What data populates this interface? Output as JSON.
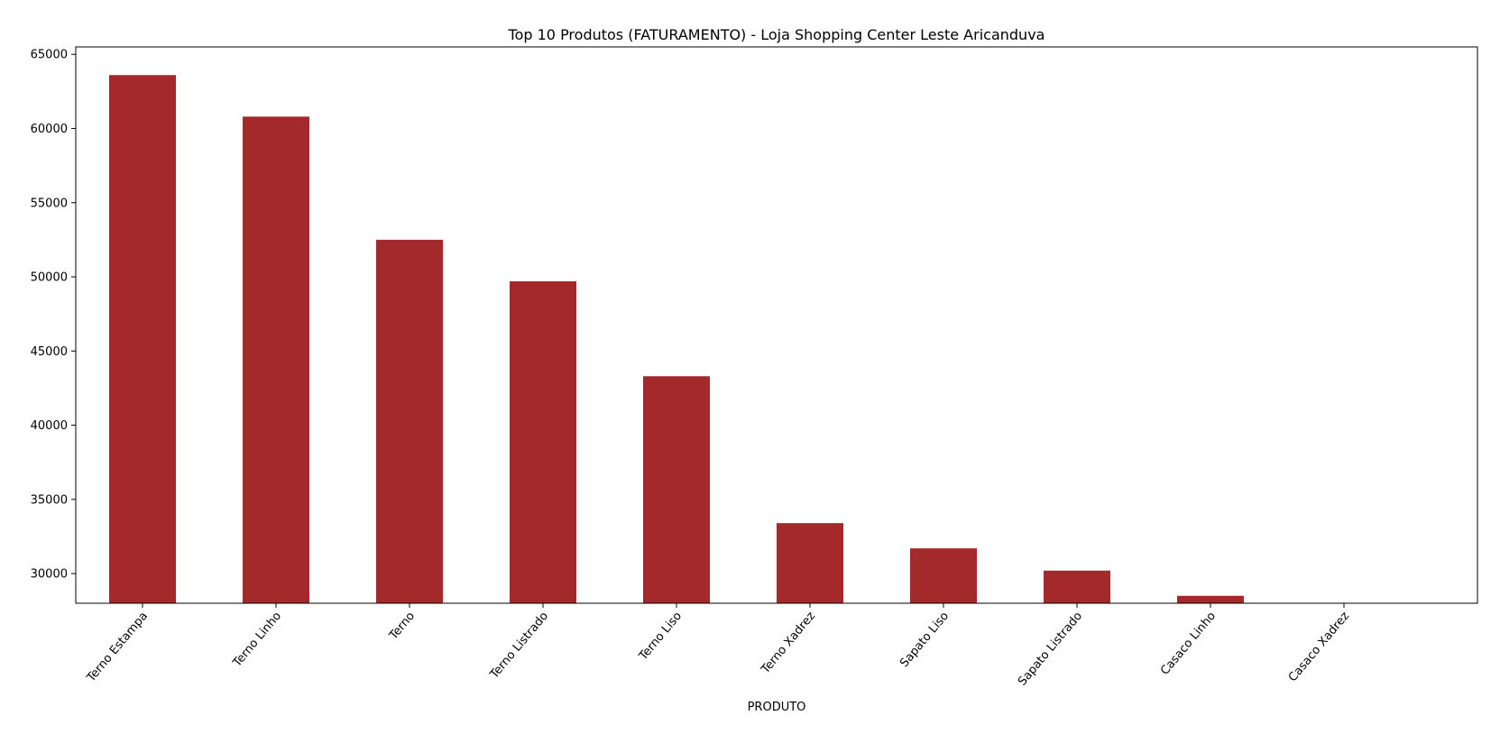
{
  "chart_data": {
    "type": "bar",
    "title": "Top 10 Produtos (FATURAMENTO) - Loja Shopping Center Leste Aricanduva",
    "xlabel": "PRODUTO",
    "ylabel": "",
    "categories": [
      "Terno Estampa",
      "Terno Linho",
      "Terno",
      "Terno Listrado",
      "Terno Liso",
      "Terno Xadrez",
      "Sapato Liso",
      "Sapato Listrado",
      "Casaco Linho",
      "Casaco Xadrez"
    ],
    "values": [
      63600,
      60800,
      52500,
      49700,
      43300,
      33400,
      31700,
      30200,
      28500,
      28000
    ],
    "ylim": [
      28000,
      65500
    ],
    "yticks": [
      30000,
      35000,
      40000,
      45000,
      50000,
      55000,
      60000,
      65000
    ],
    "bar_color": "#a4292b",
    "grid": false,
    "legend": "none"
  }
}
